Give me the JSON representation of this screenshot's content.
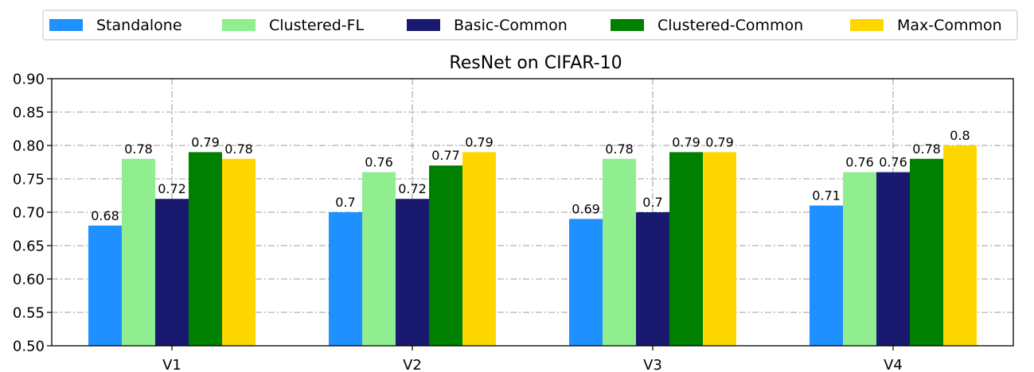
{
  "chart_data": {
    "type": "bar",
    "title": "ResNet on CIFAR-10",
    "xlabel": "",
    "ylabel": "",
    "ylim": [
      0.5,
      0.9
    ],
    "yticks": [
      "0.50",
      "0.55",
      "0.60",
      "0.65",
      "0.70",
      "0.75",
      "0.80",
      "0.85",
      "0.90"
    ],
    "grid": true,
    "legend_position": "top-center",
    "categories": [
      "V1",
      "V2",
      "V3",
      "V4"
    ],
    "series": [
      {
        "name": "Standalone",
        "color": "#1e90ff",
        "values": [
          0.68,
          0.7,
          0.69,
          0.71
        ],
        "labels": [
          "0.68",
          "0.7",
          "0.69",
          "0.71"
        ]
      },
      {
        "name": "Clustered-FL",
        "color": "#90ee90",
        "values": [
          0.78,
          0.76,
          0.78,
          0.76
        ],
        "labels": [
          "0.78",
          "0.76",
          "0.78",
          "0.76"
        ]
      },
      {
        "name": "Basic-Common",
        "color": "#191970",
        "values": [
          0.72,
          0.72,
          0.7,
          0.76
        ],
        "labels": [
          "0.72",
          "0.72",
          "0.7",
          "0.76"
        ]
      },
      {
        "name": "Clustered-Common",
        "color": "#008000",
        "values": [
          0.79,
          0.77,
          0.79,
          0.78
        ],
        "labels": [
          "0.79",
          "0.77",
          "0.79",
          "0.78"
        ]
      },
      {
        "name": "Max-Common",
        "color": "#ffd700",
        "values": [
          0.78,
          0.79,
          0.79,
          0.8
        ],
        "labels": [
          "0.78",
          "0.79",
          "0.79",
          "0.8"
        ]
      }
    ]
  }
}
